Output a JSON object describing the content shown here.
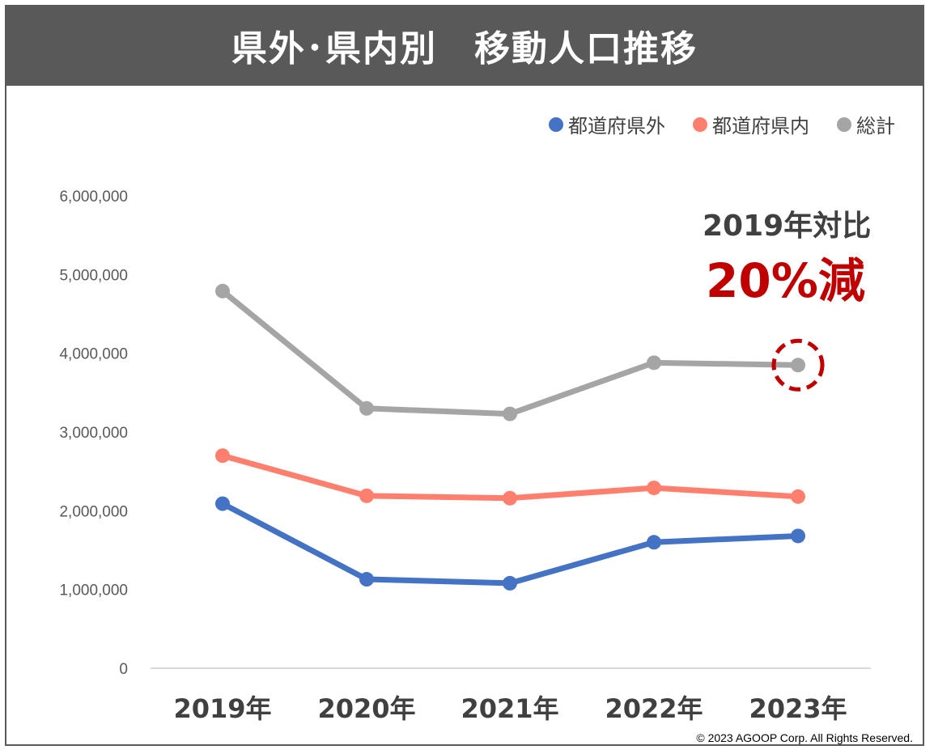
{
  "header": {
    "title": "県外･県内別　移動人口推移"
  },
  "chart_data": {
    "type": "line",
    "title": "県外･県内別　移動人口推移",
    "categories": [
      "2019年",
      "2020年",
      "2021年",
      "2022年",
      "2023年"
    ],
    "series": [
      {
        "name": "都道府県外",
        "color": "#4472C4",
        "values": [
          2090000,
          1130000,
          1080000,
          1600000,
          1680000
        ]
      },
      {
        "name": "都道府県内",
        "color": "#FF7F6E",
        "values": [
          2700000,
          2190000,
          2160000,
          2290000,
          2180000
        ]
      },
      {
        "name": "総計",
        "color": "#A5A5A5",
        "values": [
          4790000,
          3300000,
          3230000,
          3880000,
          3850000
        ]
      }
    ],
    "ylim": [
      0,
      6000000
    ],
    "yticks": [
      0,
      1000000,
      2000000,
      3000000,
      4000000,
      5000000,
      6000000
    ],
    "ytick_labels": [
      "0",
      "1,000,000",
      "2,000,000",
      "3,000,000",
      "4,000,000",
      "5,000,000",
      "6,000,000"
    ],
    "xlabel": "",
    "ylabel": "",
    "grid": false,
    "legend_position": "top-right",
    "annotation": {
      "line1": "2019年対比",
      "line2": "20%減",
      "highlight_series": "総計",
      "highlight_category": "2023年"
    }
  },
  "colors": {
    "header_bg": "#595959",
    "annotation_red": "#C00000"
  },
  "footer": {
    "copyright": "© 2023 AGOOP Corp. All Rights Reserved."
  }
}
